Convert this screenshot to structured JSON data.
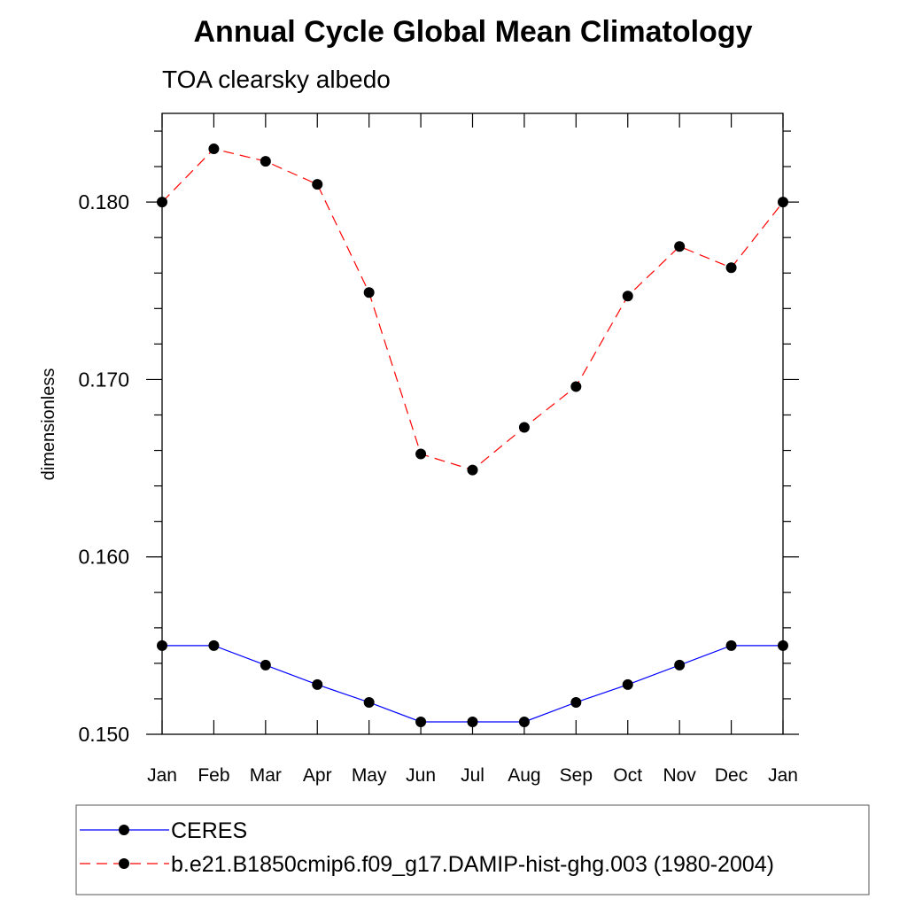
{
  "chart_data": {
    "type": "line",
    "title": "Annual Cycle Global Mean Climatology",
    "subtitle": "TOA clearsky albedo",
    "ylabel": "dimensionless",
    "xlabel": "",
    "categories": [
      "Jan",
      "Feb",
      "Mar",
      "Apr",
      "May",
      "Jun",
      "Jul",
      "Aug",
      "Sep",
      "Oct",
      "Nov",
      "Dec",
      "Jan"
    ],
    "ylim": [
      0.15,
      0.185
    ],
    "yticks": [
      "0.150",
      "0.160",
      "0.170",
      "0.180"
    ],
    "grid": false,
    "legend_position": "bottom",
    "series": [
      {
        "name": "CERES",
        "color": "#0000ff",
        "dash": "solid",
        "marker": "filled-circle",
        "values": [
          0.155,
          0.155,
          0.1539,
          0.1528,
          0.1518,
          0.1507,
          0.1507,
          0.1507,
          0.1518,
          0.1528,
          0.1539,
          0.155,
          0.155
        ]
      },
      {
        "name": "b.e21.B1850cmip6.f09_g17.DAMIP-hist-ghg.003 (1980-2004)",
        "color": "#ff0000",
        "dash": "dashed",
        "marker": "filled-circle",
        "values": [
          0.18,
          0.183,
          0.1823,
          0.181,
          0.1749,
          0.1658,
          0.1649,
          0.1673,
          0.1696,
          0.1747,
          0.1775,
          0.1763,
          0.18
        ]
      }
    ]
  }
}
